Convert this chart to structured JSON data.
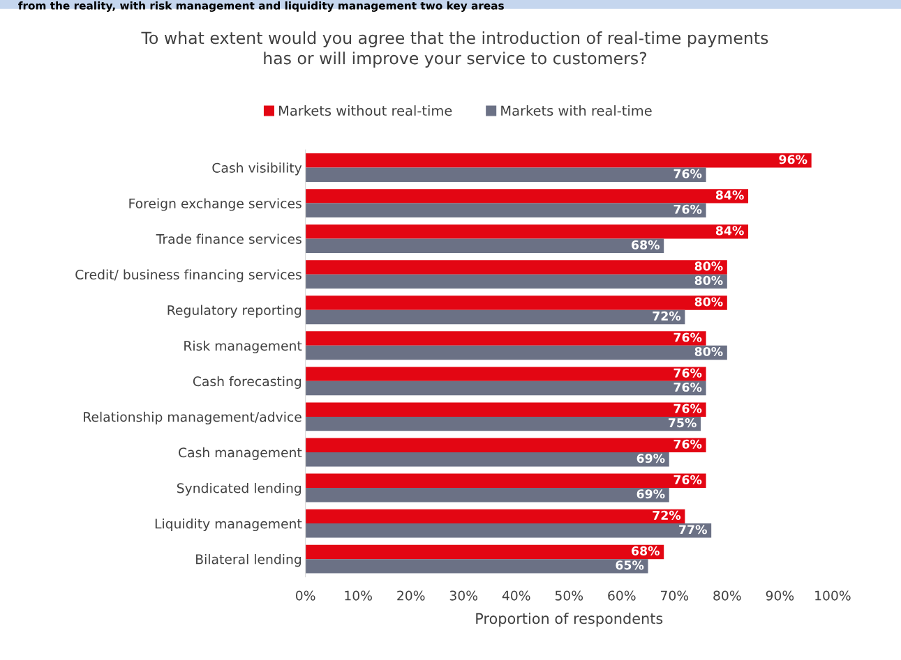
{
  "chart_data": {
    "type": "bar",
    "orientation": "horizontal",
    "title": "To what extent would you agree that the introduction of real-time payments\nhas or will improve your service to customers?",
    "xlabel": "Proportion of respondents",
    "annotations": [
      "from the reality, with risk management and liquidity management two key areas"
    ],
    "categories": [
      "Cash visibility",
      "Foreign exchange services",
      "Trade finance services",
      "Credit/ business financing services",
      "Regulatory reporting",
      "Risk management",
      "Cash forecasting",
      "Relationship management/advice",
      "Cash management",
      "Syndicated lending",
      "Liquidity management",
      "Bilateral lending"
    ],
    "series": [
      {
        "name": "Markets without real-time",
        "color": "#e30613",
        "values": [
          96,
          84,
          84,
          80,
          80,
          76,
          76,
          76,
          76,
          76,
          72,
          68
        ],
        "value_labels": [
          "96%",
          "84%",
          "84%",
          "80%",
          "80%",
          "76%",
          "76%",
          "76%",
          "76%",
          "76%",
          "72%",
          "68%"
        ]
      },
      {
        "name": "Markets with real-time",
        "color": "#6b7185",
        "values": [
          76,
          76,
          68,
          80,
          72,
          80,
          76,
          75,
          69,
          69,
          77,
          65
        ],
        "value_labels": [
          "76%",
          "76%",
          "68%",
          "80%",
          "72%",
          "80%",
          "76%",
          "75%",
          "69%",
          "69%",
          "77%",
          "65%"
        ]
      }
    ],
    "xlim": [
      0,
      100
    ],
    "xticks": [
      {
        "value": 0,
        "label": "0%"
      },
      {
        "value": 10,
        "label": "10%"
      },
      {
        "value": 20,
        "label": "20%"
      },
      {
        "value": 30,
        "label": "30%"
      },
      {
        "value": 40,
        "label": "40%"
      },
      {
        "value": 50,
        "label": "50%"
      },
      {
        "value": 60,
        "label": "60%"
      },
      {
        "value": 70,
        "label": "70%"
      },
      {
        "value": 80,
        "label": "80%"
      },
      {
        "value": 90,
        "label": "90%"
      },
      {
        "value": 100,
        "label": "100%"
      }
    ],
    "legend": "top",
    "grid": false
  }
}
